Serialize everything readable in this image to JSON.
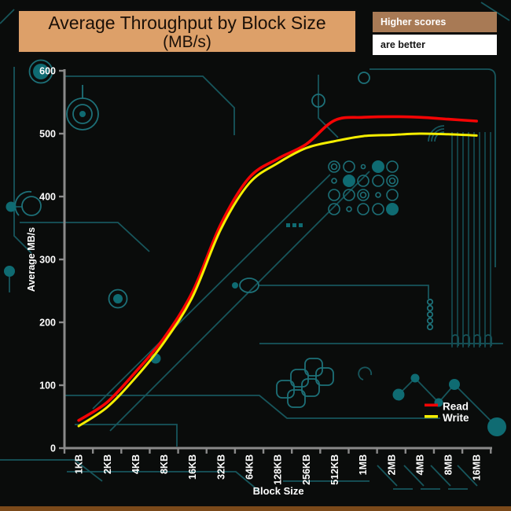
{
  "header": {
    "title_line1": "Average Throughput by Block Size",
    "title_line2": "(MB/s)",
    "note_primary": "Higher scores",
    "note_secondary": "are better"
  },
  "colors": {
    "banner_bg": "#dda069",
    "note_bg": "#a87a55",
    "axis": "#8a8a8a",
    "label": "#ffffff",
    "trace": "#17565c",
    "read": "#f40404",
    "write": "#f5ee00",
    "background": "#0a0c0b",
    "bottom_strip": "#7b4a1a"
  },
  "chart_data": {
    "type": "line",
    "title": "Average Throughput by Block Size (MB/s)",
    "xlabel": "Block Size",
    "ylabel": "Average MB/s",
    "ylim": [
      0,
      600
    ],
    "yticks": [
      0,
      100,
      200,
      300,
      400,
      500,
      600
    ],
    "grid": false,
    "legend_position": "inside-right-bottom",
    "categories": [
      "1KB",
      "2KB",
      "4KB",
      "8KB",
      "16KB",
      "32KB",
      "64KB",
      "128KB",
      "256KB",
      "512KB",
      "1MB",
      "2MB",
      "4MB",
      "8MB",
      "16MB"
    ],
    "series": [
      {
        "name": "Read",
        "color": "#f40404",
        "values": [
          44,
          73,
          121,
          175,
          248,
          356,
          430,
          460,
          483,
          521,
          526,
          527,
          526,
          523,
          520
        ]
      },
      {
        "name": "Write",
        "color": "#f5ee00",
        "values": [
          35,
          65,
          112,
          168,
          240,
          348,
          421,
          453,
          477,
          488,
          496,
          498,
          500,
          499,
          497
        ]
      }
    ]
  }
}
